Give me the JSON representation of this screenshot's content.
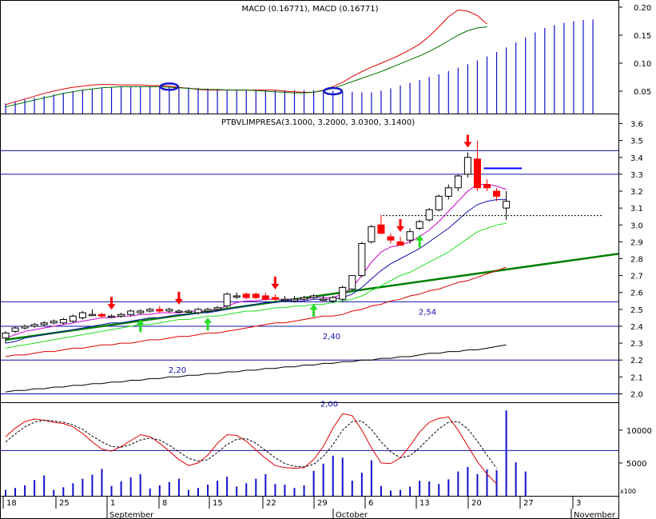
{
  "chart_data": [
    {
      "type": "line",
      "panel": "macd",
      "title": "MACD (0.16771), MACD (0.16771)",
      "ylim": [
        0.01,
        0.21
      ],
      "yticks": [
        "0.05",
        "0.10",
        "0.15",
        "0.20"
      ],
      "ytick_values": [
        0.05,
        0.1,
        0.15,
        0.2
      ],
      "histogram": [
        0.028,
        0.032,
        0.035,
        0.038,
        0.041,
        0.044,
        0.047,
        0.05,
        0.052,
        0.054,
        0.056,
        0.057,
        0.058,
        0.058,
        0.058,
        0.058,
        0.058,
        0.058,
        0.058,
        0.057,
        0.056,
        0.055,
        0.054,
        0.053,
        0.053,
        0.052,
        0.052,
        0.052,
        0.052,
        0.052,
        0.052,
        0.052,
        0.052,
        0.052,
        0.051,
        0.05,
        0.049,
        0.048,
        0.048,
        0.051,
        0.055,
        0.06,
        0.065,
        0.07,
        0.075,
        0.08,
        0.086,
        0.092,
        0.098,
        0.105,
        0.112,
        0.12,
        0.128,
        0.137,
        0.146,
        0.155,
        0.163,
        0.168,
        0.172,
        0.175,
        0.177,
        0.178
      ],
      "series": [
        {
          "name": "MACD",
          "color": "#e00000",
          "values": [
            0.026,
            0.031,
            0.036,
            0.041,
            0.046,
            0.05,
            0.054,
            0.057,
            0.059,
            0.061,
            0.062,
            0.062,
            0.061,
            0.061,
            0.061,
            0.06,
            0.06,
            0.059,
            0.057,
            0.055,
            0.053,
            0.052,
            0.052,
            0.052,
            0.052,
            0.052,
            0.052,
            0.052,
            0.052,
            0.05,
            0.049,
            0.048,
            0.048,
            0.052,
            0.058,
            0.066,
            0.076,
            0.085,
            0.093,
            0.1,
            0.107,
            0.115,
            0.124,
            0.134,
            0.148,
            0.165,
            0.183,
            0.195,
            0.193,
            0.185,
            0.17
          ]
        },
        {
          "name": "Signal",
          "color": "#007000",
          "values": [
            0.022,
            0.026,
            0.03,
            0.034,
            0.038,
            0.042,
            0.046,
            0.049,
            0.052,
            0.054,
            0.056,
            0.057,
            0.058,
            0.058,
            0.058,
            0.058,
            0.058,
            0.057,
            0.056,
            0.055,
            0.054,
            0.053,
            0.053,
            0.052,
            0.052,
            0.052,
            0.051,
            0.05,
            0.049,
            0.048,
            0.047,
            0.047,
            0.048,
            0.051,
            0.055,
            0.061,
            0.067,
            0.073,
            0.079,
            0.085,
            0.092,
            0.099,
            0.106,
            0.113,
            0.121,
            0.13,
            0.14,
            0.15,
            0.158,
            0.163,
            0.165
          ]
        }
      ],
      "markers": [
        "circle",
        "circle"
      ]
    },
    {
      "type": "candlestick",
      "panel": "price",
      "title": "PTBVLIMPRESA(3.1000, 3.2000, 3.0300, 3.1400)",
      "ylim": [
        1.95,
        3.65
      ],
      "yticks": [
        "2.0",
        "2.1",
        "2.2",
        "2.3",
        "2.4",
        "2.5",
        "2.6",
        "2.7",
        "2.8",
        "2.9",
        "3.0",
        "3.1",
        "3.2",
        "3.3",
        "3.4",
        "3.5",
        "3.6"
      ],
      "ytick_values": [
        2.0,
        2.1,
        2.2,
        2.3,
        2.4,
        2.5,
        2.6,
        2.7,
        2.8,
        2.9,
        3.0,
        3.1,
        3.2,
        3.3,
        3.4,
        3.5,
        3.6
      ],
      "candles": [
        [
          2.33,
          2.37,
          2.3,
          2.36
        ],
        [
          2.37,
          2.4,
          2.36,
          2.39
        ],
        [
          2.39,
          2.41,
          2.38,
          2.4
        ],
        [
          2.4,
          2.42,
          2.39,
          2.41
        ],
        [
          2.41,
          2.43,
          2.4,
          2.42
        ],
        [
          2.42,
          2.44,
          2.41,
          2.43
        ],
        [
          2.42,
          2.45,
          2.41,
          2.44
        ],
        [
          2.43,
          2.47,
          2.42,
          2.46
        ],
        [
          2.45,
          2.49,
          2.44,
          2.48
        ],
        [
          2.47,
          2.5,
          2.46,
          2.47
        ],
        [
          2.47,
          2.48,
          2.45,
          2.46
        ],
        [
          2.46,
          2.47,
          2.45,
          2.46
        ],
        [
          2.46,
          2.48,
          2.45,
          2.47
        ],
        [
          2.47,
          2.5,
          2.46,
          2.49
        ],
        [
          2.48,
          2.5,
          2.47,
          2.49
        ],
        [
          2.49,
          2.51,
          2.48,
          2.5
        ],
        [
          2.5,
          2.52,
          2.48,
          2.49
        ],
        [
          2.49,
          2.51,
          2.48,
          2.5
        ],
        [
          2.49,
          2.5,
          2.48,
          2.49
        ],
        [
          2.49,
          2.5,
          2.48,
          2.49
        ],
        [
          2.48,
          2.51,
          2.47,
          2.5
        ],
        [
          2.49,
          2.51,
          2.48,
          2.5
        ],
        [
          2.5,
          2.52,
          2.49,
          2.51
        ],
        [
          2.52,
          2.6,
          2.51,
          2.59
        ],
        [
          2.58,
          2.6,
          2.56,
          2.58
        ],
        [
          2.59,
          2.6,
          2.56,
          2.57
        ],
        [
          2.59,
          2.6,
          2.56,
          2.57
        ],
        [
          2.58,
          2.6,
          2.55,
          2.56
        ],
        [
          2.57,
          2.59,
          2.55,
          2.56
        ],
        [
          2.56,
          2.58,
          2.55,
          2.56
        ],
        [
          2.55,
          2.58,
          2.54,
          2.56
        ],
        [
          2.56,
          2.58,
          2.55,
          2.57
        ],
        [
          2.57,
          2.59,
          2.56,
          2.58
        ],
        [
          2.56,
          2.58,
          2.55,
          2.56
        ],
        [
          2.55,
          2.58,
          2.54,
          2.57
        ],
        [
          2.56,
          2.64,
          2.55,
          2.63
        ],
        [
          2.62,
          2.7,
          2.61,
          2.7
        ],
        [
          2.7,
          2.9,
          2.69,
          2.89
        ],
        [
          2.9,
          3.0,
          2.89,
          2.99
        ],
        [
          3.0,
          3.06,
          2.96,
          2.95
        ],
        [
          2.93,
          2.95,
          2.89,
          2.91
        ],
        [
          2.9,
          2.93,
          2.88,
          2.88
        ],
        [
          2.91,
          2.98,
          2.89,
          2.96
        ],
        [
          2.98,
          3.03,
          2.97,
          3.02
        ],
        [
          3.03,
          3.1,
          3.02,
          3.09
        ],
        [
          3.09,
          3.18,
          3.08,
          3.17
        ],
        [
          3.17,
          3.24,
          3.15,
          3.22
        ],
        [
          3.22,
          3.3,
          3.2,
          3.29
        ],
        [
          3.3,
          3.43,
          3.28,
          3.4
        ],
        [
          3.39,
          3.5,
          3.2,
          3.22
        ],
        [
          3.24,
          3.27,
          3.2,
          3.22
        ],
        [
          3.2,
          3.22,
          3.14,
          3.17
        ],
        [
          3.1,
          3.2,
          3.03,
          3.14
        ]
      ],
      "up_color": "#ffffff",
      "down_color": "#ff0000",
      "series": [
        {
          "name": "MA1",
          "color": "#cc00cc",
          "values": [
            2.33,
            2.35,
            2.37,
            2.38,
            2.39,
            2.4,
            2.41,
            2.42,
            2.43,
            2.44,
            2.45,
            2.45,
            2.46,
            2.46,
            2.47,
            2.47,
            2.48,
            2.48,
            2.48,
            2.49,
            2.49,
            2.49,
            2.5,
            2.52,
            2.54,
            2.55,
            2.55,
            2.56,
            2.56,
            2.56,
            2.56,
            2.56,
            2.57,
            2.57,
            2.57,
            2.59,
            2.63,
            2.7,
            2.78,
            2.84,
            2.87,
            2.88,
            2.9,
            2.93,
            2.97,
            3.02,
            3.08,
            3.14,
            3.2,
            3.24,
            3.24,
            3.23,
            3.21
          ]
        },
        {
          "name": "MA2",
          "color": "#1010aa",
          "values": [
            2.3,
            2.31,
            2.33,
            2.34,
            2.35,
            2.36,
            2.37,
            2.38,
            2.39,
            2.4,
            2.41,
            2.42,
            2.42,
            2.43,
            2.44,
            2.45,
            2.45,
            2.46,
            2.47,
            2.47,
            2.48,
            2.48,
            2.49,
            2.5,
            2.51,
            2.52,
            2.53,
            2.54,
            2.54,
            2.55,
            2.55,
            2.55,
            2.56,
            2.56,
            2.56,
            2.57,
            2.59,
            2.63,
            2.68,
            2.73,
            2.77,
            2.8,
            2.83,
            2.86,
            2.9,
            2.94,
            2.98,
            3.03,
            3.08,
            3.12,
            3.14,
            3.15,
            3.15
          ]
        },
        {
          "name": "MA3",
          "color": "#22dd22",
          "values": [
            2.27,
            2.28,
            2.29,
            2.3,
            2.31,
            2.32,
            2.33,
            2.34,
            2.35,
            2.36,
            2.37,
            2.38,
            2.39,
            2.4,
            2.41,
            2.41,
            2.42,
            2.43,
            2.44,
            2.44,
            2.45,
            2.46,
            2.46,
            2.47,
            2.48,
            2.49,
            2.49,
            2.5,
            2.51,
            2.51,
            2.52,
            2.52,
            2.53,
            2.53,
            2.54,
            2.55,
            2.56,
            2.58,
            2.61,
            2.64,
            2.67,
            2.7,
            2.72,
            2.75,
            2.78,
            2.81,
            2.84,
            2.88,
            2.92,
            2.96,
            2.98,
            3.0,
            3.01
          ]
        },
        {
          "name": "MA4",
          "color": "#dd0000",
          "values": [
            2.22,
            2.23,
            2.23,
            2.24,
            2.25,
            2.25,
            2.26,
            2.27,
            2.27,
            2.28,
            2.29,
            2.29,
            2.3,
            2.3,
            2.31,
            2.32,
            2.32,
            2.33,
            2.34,
            2.34,
            2.35,
            2.36,
            2.36,
            2.37,
            2.38,
            2.39,
            2.4,
            2.41,
            2.42,
            2.42,
            2.43,
            2.44,
            2.45,
            2.46,
            2.46,
            2.47,
            2.49,
            2.5,
            2.52,
            2.53,
            2.55,
            2.56,
            2.58,
            2.59,
            2.61,
            2.62,
            2.64,
            2.66,
            2.67,
            2.69,
            2.71,
            2.73,
            2.75
          ]
        },
        {
          "name": "MA5",
          "color": "#000000",
          "values": [
            2.01,
            2.02,
            2.02,
            2.03,
            2.03,
            2.04,
            2.04,
            2.05,
            2.05,
            2.06,
            2.06,
            2.07,
            2.07,
            2.08,
            2.08,
            2.09,
            2.09,
            2.1,
            2.1,
            2.11,
            2.11,
            2.12,
            2.12,
            2.13,
            2.13,
            2.14,
            2.14,
            2.15,
            2.15,
            2.16,
            2.16,
            2.17,
            2.17,
            2.18,
            2.18,
            2.19,
            2.19,
            2.2,
            2.2,
            2.21,
            2.21,
            2.22,
            2.22,
            2.23,
            2.24,
            2.24,
            2.25,
            2.25,
            2.26,
            2.26,
            2.27,
            2.28,
            2.29
          ]
        }
      ],
      "hlines": [
        {
          "value": 3.44,
          "color": "#1010aa"
        },
        {
          "value": 3.3,
          "color": "#1010aa"
        },
        {
          "value": 2.545,
          "color": "#1010aa",
          "label": "2,54"
        },
        {
          "value": 2.4,
          "color": "#1010aa",
          "label": "2,40"
        },
        {
          "value": 2.2,
          "color": "#1010aa",
          "label": "2,20"
        },
        {
          "value": 2.0,
          "color": "#1010aa",
          "label": "2,00"
        }
      ],
      "trendline": {
        "from": [
          0,
          2.32
        ],
        "to": [
          60,
          2.8
        ],
        "color": "#008000"
      },
      "resistance_segment": {
        "from": 50,
        "to": 56,
        "value": 3.335,
        "color": "#0000ff"
      },
      "dotted_level": {
        "from": 40,
        "to": 60,
        "value": 3.055
      },
      "sell_signals": [
        15,
        26,
        41,
        38,
        52
      ],
      "buy_signals": [
        20,
        30,
        45,
        39
      ]
    },
    {
      "type": "line",
      "panel": "oscillator",
      "yticks": [
        "5000",
        "10000"
      ],
      "ytick_values": [
        5000,
        10000
      ],
      "ylim": [
        0,
        14000
      ],
      "volume_unit": "x100",
      "volume": [
        900,
        1200,
        1600,
        2400,
        3100,
        900,
        1300,
        1900,
        2600,
        3200,
        4100,
        1500,
        2200,
        2800,
        3300,
        1100,
        1600,
        2100,
        2600,
        900,
        1200,
        1700,
        2300,
        2900,
        1400,
        1900,
        2600,
        3300,
        1800,
        1700,
        1200,
        1600,
        3800,
        4900,
        6100,
        5800,
        2300,
        3500,
        5400,
        1500,
        800,
        900,
        1400,
        2300,
        2200,
        1800,
        2500,
        3700,
        4400,
        3300,
        4000,
        3900,
        13000,
        5100,
        3700
      ],
      "series": [
        {
          "name": "Oscillator",
          "color": "#e00000",
          "values": [
            9000,
            10300,
            11300,
            11700,
            11500,
            11200,
            11000,
            10500,
            9500,
            8200,
            7100,
            6800,
            7500,
            8400,
            9300,
            9000,
            8000,
            6800,
            5500,
            4600,
            5000,
            6200,
            8000,
            9300,
            9200,
            8300,
            7000,
            5700,
            4600,
            4300,
            4200,
            4300,
            5500,
            7500,
            10300,
            12500,
            12200,
            10000,
            7300,
            5000,
            4900,
            5800,
            7600,
            9700,
            11200,
            11800,
            12000,
            10000,
            7600,
            5200,
            3300,
            1800
          ]
        },
        {
          "name": "Signal",
          "color": "#000000",
          "dashed": true,
          "values": [
            8200,
            9400,
            10500,
            11200,
            11500,
            11400,
            11200,
            10800,
            10100,
            9100,
            8200,
            7500,
            7400,
            7800,
            8500,
            8800,
            8500,
            7700,
            6700,
            5700,
            5300,
            5500,
            6600,
            7800,
            8600,
            8700,
            8000,
            6900,
            5800,
            4900,
            4500,
            4400,
            4800,
            6000,
            7800,
            10000,
            11300,
            11400,
            10100,
            8200,
            6700,
            5800,
            6100,
            7300,
            8800,
            10200,
            11200,
            11300,
            10200,
            8300,
            6200,
            4200
          ]
        }
      ],
      "hline": {
        "value": 6900,
        "color": "#1010aa"
      }
    }
  ],
  "x_axis": {
    "day_labels": [
      "18",
      "25",
      "1",
      "8",
      "15",
      "22",
      "29",
      "6",
      "13",
      "20",
      "27",
      "3"
    ],
    "month_labels": [
      "September",
      "October",
      "November"
    ]
  },
  "colors": {
    "grid_border": "#000080",
    "axis_text": "#000000"
  }
}
